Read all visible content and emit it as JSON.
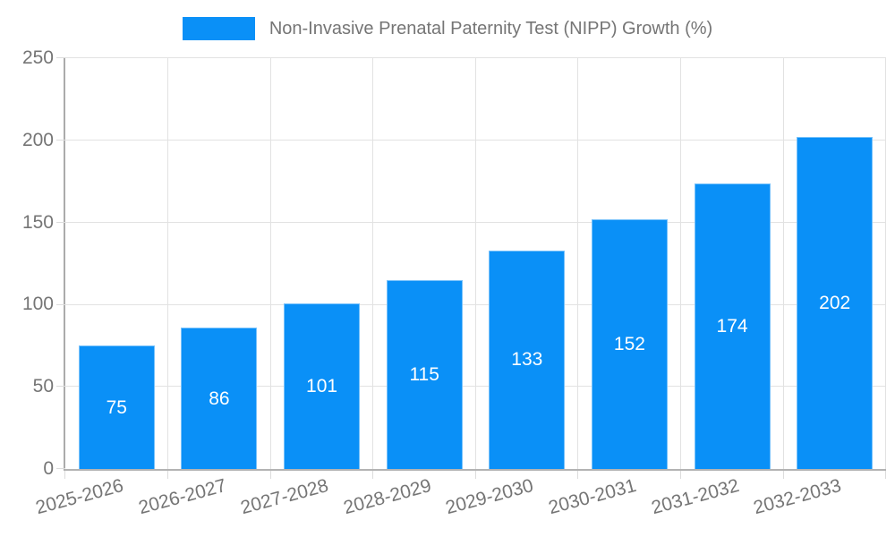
{
  "chart_data": {
    "type": "bar",
    "title": "Non-Invasive Prenatal Paternity Test (NIPP) Growth (%)",
    "categories": [
      "2025-2026",
      "2026-2027",
      "2027-2028",
      "2028-2029",
      "2029-2030",
      "2030-2031",
      "2031-2032",
      "2032-2033"
    ],
    "values": [
      75,
      86,
      101,
      115,
      133,
      152,
      174,
      202
    ],
    "xlabel": "",
    "ylabel": "",
    "ylim": [
      0,
      250
    ],
    "yticks": [
      0,
      50,
      100,
      150,
      200,
      250
    ],
    "grid": true,
    "legend_position": "top",
    "x_label_rotation_deg": -15,
    "colors": {
      "bar": "#0a90f7",
      "bar_value_label": "#ffffff",
      "axis_line": "#ababab",
      "gridline": "#e2e2e2",
      "tick_label": "#757575",
      "legend_text": "#757575"
    }
  }
}
